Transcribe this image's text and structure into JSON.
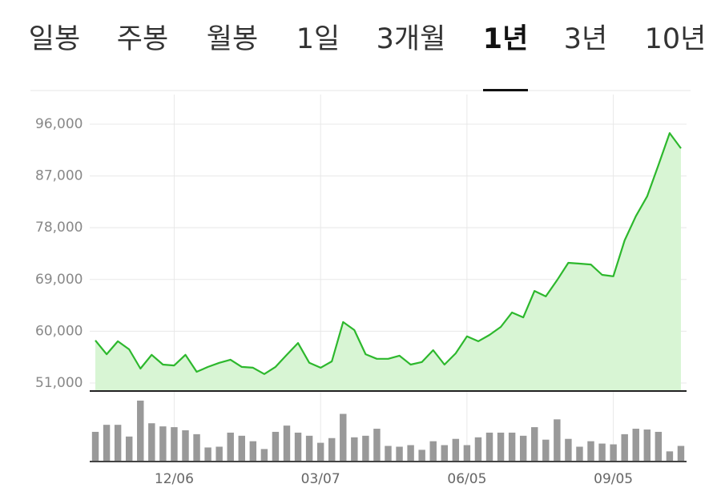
{
  "tabs": {
    "items": [
      "일봉",
      "주봉",
      "월봉",
      "1일",
      "3개월",
      "1년",
      "3년",
      "10년"
    ],
    "selected": 5
  },
  "chart_data": [
    {
      "type": "line",
      "color": "#2db82d",
      "fill": "#d8f5d4",
      "categories": [
        null,
        null,
        null,
        null,
        null,
        null,
        null,
        "12/06",
        null,
        null,
        null,
        null,
        null,
        null,
        null,
        null,
        null,
        null,
        null,
        null,
        "03/07",
        null,
        null,
        null,
        null,
        null,
        null,
        null,
        null,
        null,
        null,
        null,
        null,
        "06/05",
        null,
        null,
        null,
        null,
        null,
        null,
        null,
        null,
        null,
        null,
        null,
        null,
        "09/05",
        null,
        null,
        null,
        null,
        null,
        null
      ],
      "values": [
        58400,
        56000,
        58250,
        56850,
        53500,
        55900,
        54200,
        54050,
        55900,
        52950,
        53800,
        54500,
        55050,
        53800,
        53650,
        52550,
        53800,
        55900,
        57950,
        54500,
        53650,
        54750,
        61600,
        60200,
        56000,
        55200,
        55200,
        55750,
        54200,
        54650,
        56700,
        54200,
        56150,
        59100,
        58250,
        59350,
        60750,
        63250,
        62400,
        67000,
        66050,
        68850,
        71900,
        71750,
        71600,
        69800,
        69550,
        75800,
        80000,
        83450,
        88900,
        94450,
        91800
      ],
      "ylim": [
        49600,
        96000
      ],
      "yticks": [
        {
          "value": 96000,
          "label": "96,000"
        },
        {
          "value": 87000,
          "label": "87,000"
        },
        {
          "value": 78000,
          "label": "78,000"
        },
        {
          "value": 69000,
          "label": "69,000"
        },
        {
          "value": 60000,
          "label": "60,000"
        },
        {
          "value": 51000,
          "label": "51,000"
        }
      ],
      "grid": true
    },
    {
      "type": "bar",
      "color": "#999999",
      "values": [
        38,
        47,
        47,
        32,
        78,
        49,
        45,
        44,
        40,
        35,
        18,
        19,
        37,
        33,
        26,
        16,
        38,
        46,
        37,
        33,
        24,
        30,
        61,
        31,
        33,
        42,
        20,
        19,
        21,
        15,
        26,
        21,
        29,
        21,
        31,
        37,
        37,
        37,
        33,
        44,
        28,
        54,
        29,
        19,
        26,
        23,
        22,
        35,
        42,
        41,
        38,
        13,
        20
      ],
      "ylim": [
        0,
        80
      ]
    }
  ]
}
